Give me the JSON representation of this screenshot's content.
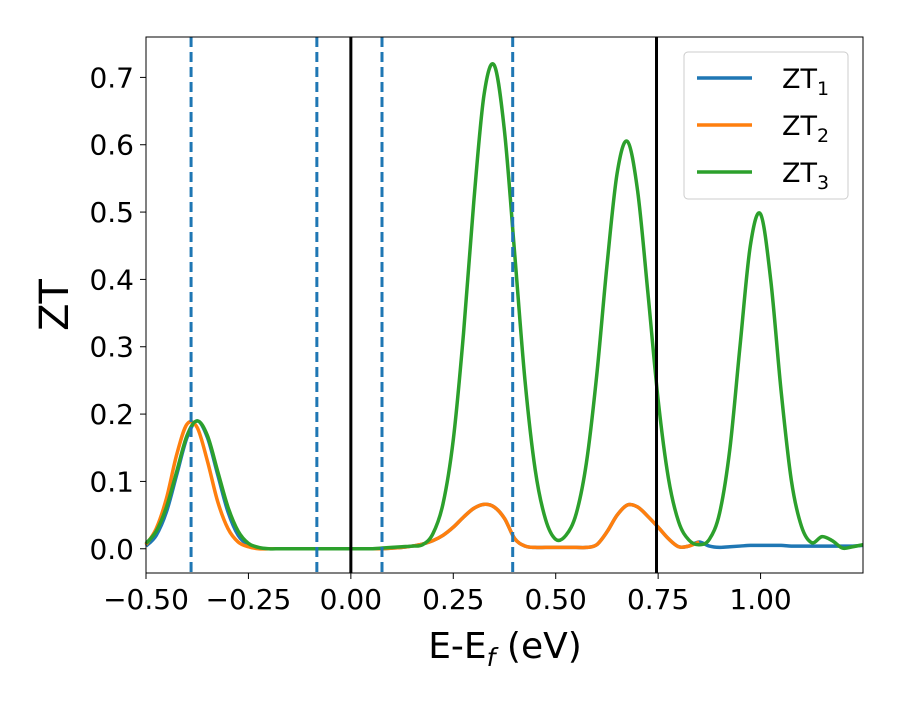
{
  "chart_data": {
    "type": "line",
    "title": "",
    "xlabel": "E-E",
    "xlabel_sub": "f",
    "xlabel_unit": " (eV)",
    "ylabel": "ZT",
    "xlim": [
      -0.5,
      1.25
    ],
    "ylim": [
      -0.036,
      0.76
    ],
    "grid": false,
    "legend_position": "top-right",
    "x_ticks": [
      -0.5,
      -0.25,
      0.0,
      0.25,
      0.5,
      0.75,
      1.0
    ],
    "x_tick_labels": [
      "−0.50",
      "−0.25",
      "0.00",
      "0.25",
      "0.50",
      "0.75",
      "1.00"
    ],
    "y_ticks": [
      0.0,
      0.1,
      0.2,
      0.3,
      0.4,
      0.5,
      0.6,
      0.7
    ],
    "y_tick_labels": [
      "0.0",
      "0.1",
      "0.2",
      "0.3",
      "0.4",
      "0.5",
      "0.6",
      "0.7"
    ],
    "vlines_dashed": {
      "x": [
        -0.39,
        -0.083,
        0.076,
        0.395
      ],
      "color": "#1f77b4"
    },
    "vlines_solid": {
      "x": [
        0.0,
        0.746
      ],
      "color": "#000000"
    },
    "x_start": -0.5,
    "x_step": 0.025,
    "series": [
      {
        "name": "ZT",
        "sub": "1",
        "color": "#1f77b4",
        "values": [
          0.004,
          0.02,
          0.055,
          0.11,
          0.165,
          0.19,
          0.165,
          0.11,
          0.055,
          0.02,
          0.006,
          0.001,
          0,
          0,
          0,
          0,
          0,
          0,
          0,
          0,
          0,
          0,
          0,
          0,
          0.001,
          0.002,
          0.004,
          0.007,
          0.012,
          0.02,
          0.032,
          0.047,
          0.06,
          0.066,
          0.062,
          0.045,
          0.015,
          0.004,
          0.002,
          0.002,
          0.002,
          0.002,
          0.002,
          0.002,
          0.006,
          0.025,
          0.05,
          0.065,
          0.062,
          0.048,
          0.032,
          0.015,
          0.003,
          0.004,
          0.01,
          0.004,
          0.002,
          0.003,
          0.004,
          0.005,
          0.005,
          0.005,
          0.005,
          0.004,
          0.004,
          0.004,
          0.004,
          0.004,
          0.004,
          0.004,
          0.005
        ]
      },
      {
        "name": "ZT",
        "sub": "2",
        "color": "#ff7f0e",
        "values": [
          0.006,
          0.03,
          0.075,
          0.14,
          0.185,
          0.18,
          0.13,
          0.07,
          0.03,
          0.01,
          0.003,
          0,
          0,
          0,
          0,
          0,
          0,
          0,
          0,
          0,
          0,
          0,
          0,
          0,
          0.001,
          0.002,
          0.004,
          0.007,
          0.012,
          0.02,
          0.032,
          0.047,
          0.06,
          0.066,
          0.062,
          0.045,
          0.015,
          0.004,
          0.002,
          0.002,
          0.002,
          0.002,
          0.002,
          0.002,
          0.006,
          0.025,
          0.05,
          0.065,
          0.062,
          0.048,
          0.032,
          0.015,
          0.003,
          0.004,
          0.01
        ]
      },
      {
        "name": "ZT",
        "sub": "3",
        "color": "#2ca02c",
        "values": [
          0.008,
          0.026,
          0.062,
          0.115,
          0.168,
          0.19,
          0.168,
          0.115,
          0.062,
          0.026,
          0.008,
          0.002,
          0,
          0,
          0,
          0,
          0,
          0,
          0,
          0,
          0,
          0,
          0,
          0.001,
          0.002,
          0.003,
          0.004,
          0.006,
          0.022,
          0.067,
          0.162,
          0.32,
          0.515,
          0.674,
          0.718,
          0.62,
          0.437,
          0.25,
          0.117,
          0.044,
          0.014,
          0.02,
          0.052,
          0.128,
          0.257,
          0.42,
          0.558,
          0.605,
          0.531,
          0.38,
          0.221,
          0.105,
          0.04,
          0.013,
          0.006,
          0.014,
          0.053,
          0.148,
          0.302,
          0.45,
          0.497,
          0.398,
          0.235,
          0.102,
          0.033,
          0.009,
          0.018,
          0.012,
          0.001,
          0.003,
          0.006
        ]
      }
    ]
  }
}
